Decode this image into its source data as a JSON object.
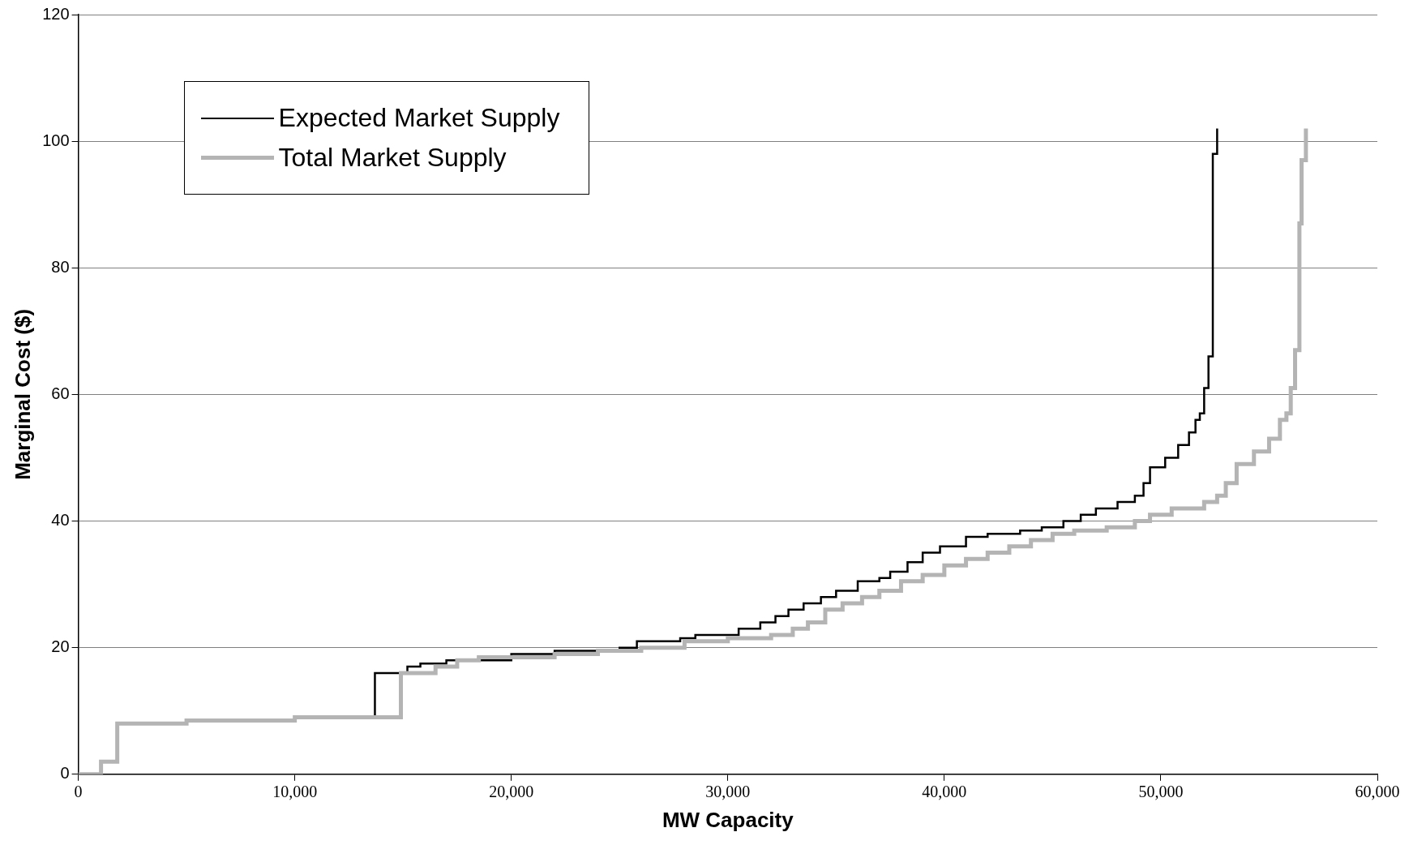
{
  "chart_data": {
    "type": "step",
    "xlabel": "MW Capacity",
    "ylabel": "Marginal Cost ($)",
    "xlim": [
      0,
      60000
    ],
    "xticks": [
      0,
      {
        "value": 10000,
        "label": "10,000"
      },
      {
        "value": 20000,
        "label": "20,000"
      },
      {
        "value": 30000,
        "label": "30,000"
      },
      {
        "value": 40000,
        "label": "40,000"
      },
      {
        "value": 50000,
        "label": "50,000"
      },
      {
        "value": 60000,
        "label": "60,000"
      }
    ],
    "ylim": [
      0,
      120
    ],
    "yticks": [
      0,
      20,
      40,
      60,
      80,
      100,
      120
    ],
    "grid": "y",
    "legend": "top left",
    "marker": "none",
    "series": [
      {
        "name": "Expected Market Supply",
        "color": "#000000",
        "x": [
          13700,
          13700,
          15200,
          15800,
          17000,
          20000,
          22000,
          25000,
          25800,
          27800,
          28500,
          30500,
          31500,
          32200,
          32800,
          33500,
          34300,
          35000,
          36000,
          37000,
          37500,
          38300,
          39000,
          39800,
          41000,
          42000,
          43500,
          44500,
          45500,
          46300,
          47000,
          48000,
          48800,
          49200,
          49500,
          50200,
          50800,
          51300,
          51600,
          51800,
          52000,
          52200,
          52400,
          52600
        ],
        "values": [
          9,
          16,
          17,
          17.5,
          18,
          19,
          19.5,
          20,
          21,
          21.5,
          22,
          23,
          24,
          25,
          26,
          27,
          28,
          29,
          30.5,
          31,
          32,
          33.5,
          35,
          36,
          37.5,
          38,
          38.5,
          39,
          40,
          41,
          42,
          43,
          44,
          46,
          48.5,
          50,
          52,
          54,
          56,
          57,
          61,
          66,
          98,
          102
        ]
      },
      {
        "name": "Total Market Supply",
        "color": "#b4b4b4",
        "x": [
          0,
          1050,
          1800,
          5000,
          10000,
          14900,
          16500,
          17500,
          18500,
          22000,
          24000,
          26000,
          28000,
          30000,
          32000,
          33000,
          33700,
          34500,
          35300,
          36200,
          37000,
          38000,
          39000,
          40000,
          41000,
          42000,
          43000,
          44000,
          45000,
          46000,
          47500,
          48800,
          49500,
          50500,
          52000,
          52600,
          53000,
          53500,
          54300,
          55000,
          55500,
          55800,
          56000,
          56200,
          56400,
          56500,
          56700
        ],
        "values": [
          0,
          2,
          8,
          8.5,
          9,
          16,
          17,
          18,
          18.5,
          19,
          19.5,
          20,
          21,
          21.5,
          22,
          23,
          24,
          26,
          27,
          28,
          29,
          30.5,
          31.5,
          33,
          34,
          35,
          36,
          37,
          38,
          38.5,
          39,
          40,
          41,
          42,
          43,
          44,
          46,
          49,
          51,
          53,
          56,
          57,
          61,
          67,
          87,
          97,
          102
        ]
      }
    ]
  }
}
